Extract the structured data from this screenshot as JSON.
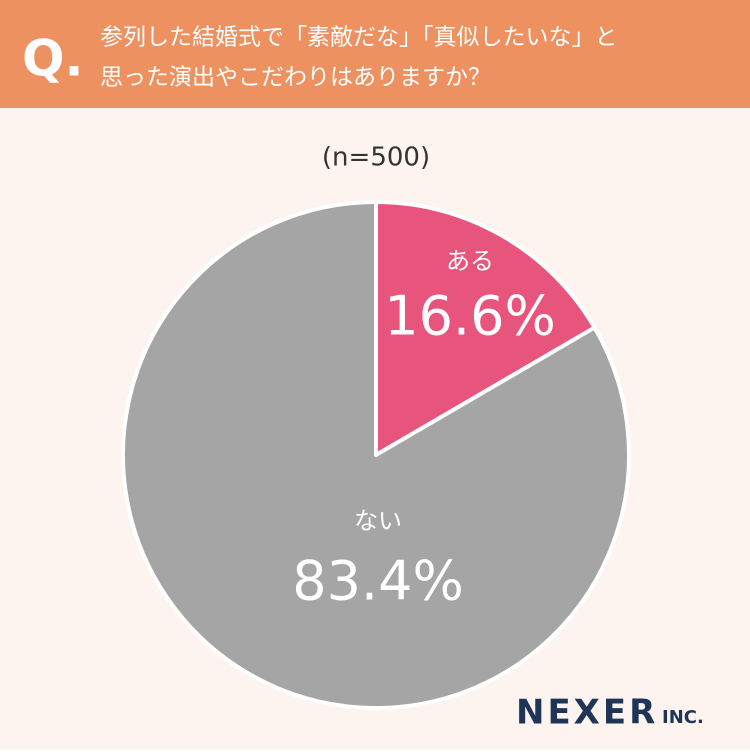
{
  "chart_data": {
    "type": "pie",
    "question_mark": "Q.",
    "title": [
      "参列した結婚式で「素敵だな」「真似したいな」と",
      "思った演出やこだわりはありますか？"
    ],
    "subtitle": "(n=500)",
    "categories": [
      "ある",
      "ない"
    ],
    "values": [
      16.6,
      83.4
    ],
    "value_labels": [
      "16.6%",
      "83.4%"
    ],
    "colors": [
      "#e8557c",
      "#a5a5a5"
    ]
  },
  "brand": {
    "name": "NEXER",
    "suffix": "INC."
  }
}
